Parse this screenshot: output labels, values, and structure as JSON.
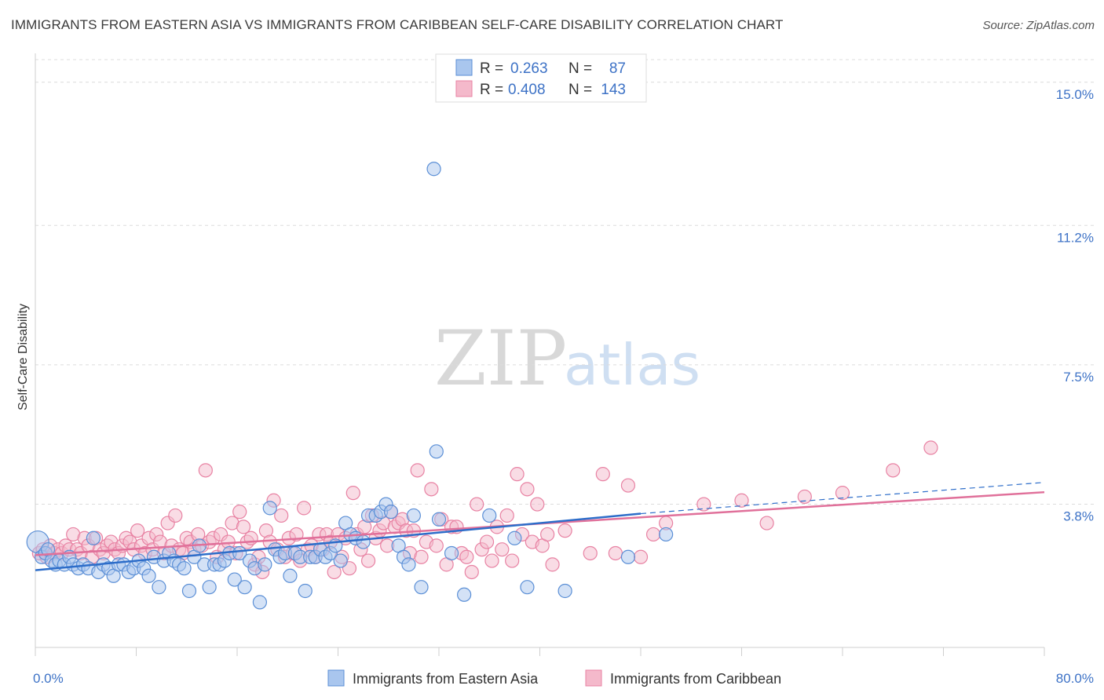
{
  "title": "IMMIGRANTS FROM EASTERN ASIA VS IMMIGRANTS FROM CARIBBEAN SELF-CARE DISABILITY CORRELATION CHART",
  "source": "Source: ZipAtlas.com",
  "watermark": {
    "zip": "ZIP",
    "atlas": "atlas"
  },
  "legend": {
    "r_label": "R =",
    "n_label": "N =",
    "rows": [
      {
        "r": "0.263",
        "n": "87"
      },
      {
        "r": "0.408",
        "n": "143"
      }
    ]
  },
  "colors": {
    "blue_fill": "#a9c6ee",
    "blue_stroke": "#5b8fd6",
    "blue_line": "#2d6dc9",
    "pink_fill": "#f4b9cb",
    "pink_stroke": "#e882a3",
    "pink_line": "#e0709a",
    "grid": "#dcdcdc",
    "tick_label": "#3d72c6"
  },
  "chart_data": {
    "type": "scatter",
    "title": "IMMIGRANTS FROM EASTERN ASIA VS IMMIGRANTS FROM CARIBBEAN SELF-CARE DISABILITY CORRELATION CHART",
    "xlabel": "",
    "ylabel": "Self-Care Disability",
    "xlim": [
      0,
      80
    ],
    "ylim": [
      0,
      15.6
    ],
    "x_tick_labels": [
      {
        "value": 0,
        "label": "0.0%"
      },
      {
        "value": 80,
        "label": "80.0%"
      }
    ],
    "y_ticks": [
      3.8,
      7.5,
      11.2,
      15.0
    ],
    "y_tick_labels": [
      "3.8%",
      "7.5%",
      "11.2%",
      "15.0%"
    ],
    "grid": true,
    "legend_position": "top-center",
    "series": [
      {
        "name": "Immigrants from Eastern Asia",
        "r": 0.263,
        "n": 87,
        "trend": {
          "x": [
            0,
            48
          ],
          "y": [
            2.05,
            3.55
          ]
        },
        "trend_dashed": {
          "x": [
            48,
            80
          ],
          "y": [
            3.55,
            4.38
          ]
        },
        "points": [
          [
            0.2,
            2.8
          ],
          [
            0.5,
            2.4
          ],
          [
            0.8,
            2.5
          ],
          [
            1.0,
            2.6
          ],
          [
            1.3,
            2.3
          ],
          [
            1.6,
            2.2
          ],
          [
            1.9,
            2.3
          ],
          [
            2.3,
            2.2
          ],
          [
            2.7,
            2.4
          ],
          [
            3.0,
            2.2
          ],
          [
            3.4,
            2.1
          ],
          [
            3.8,
            2.2
          ],
          [
            4.2,
            2.1
          ],
          [
            4.6,
            2.9
          ],
          [
            5.0,
            2.0
          ],
          [
            5.4,
            2.2
          ],
          [
            5.8,
            2.1
          ],
          [
            6.2,
            1.9
          ],
          [
            6.6,
            2.2
          ],
          [
            7.0,
            2.2
          ],
          [
            7.4,
            2.0
          ],
          [
            7.8,
            2.1
          ],
          [
            8.2,
            2.3
          ],
          [
            8.6,
            2.1
          ],
          [
            9.0,
            1.9
          ],
          [
            9.4,
            2.4
          ],
          [
            9.8,
            1.6
          ],
          [
            10.2,
            2.3
          ],
          [
            10.6,
            2.5
          ],
          [
            11.0,
            2.3
          ],
          [
            11.4,
            2.2
          ],
          [
            11.8,
            2.1
          ],
          [
            12.2,
            1.5
          ],
          [
            12.6,
            2.4
          ],
          [
            13.0,
            2.7
          ],
          [
            13.4,
            2.2
          ],
          [
            13.8,
            1.6
          ],
          [
            14.2,
            2.2
          ],
          [
            14.6,
            2.2
          ],
          [
            15.0,
            2.3
          ],
          [
            15.4,
            2.5
          ],
          [
            15.8,
            1.8
          ],
          [
            16.2,
            2.5
          ],
          [
            16.6,
            1.6
          ],
          [
            17.0,
            2.3
          ],
          [
            17.4,
            2.1
          ],
          [
            17.8,
            1.2
          ],
          [
            18.2,
            2.2
          ],
          [
            18.6,
            3.7
          ],
          [
            19.0,
            2.6
          ],
          [
            19.4,
            2.4
          ],
          [
            19.8,
            2.5
          ],
          [
            20.2,
            1.9
          ],
          [
            20.6,
            2.5
          ],
          [
            21.0,
            2.4
          ],
          [
            21.4,
            1.5
          ],
          [
            21.8,
            2.4
          ],
          [
            22.2,
            2.4
          ],
          [
            22.6,
            2.6
          ],
          [
            23.0,
            2.4
          ],
          [
            23.4,
            2.5
          ],
          [
            23.8,
            2.7
          ],
          [
            24.2,
            2.3
          ],
          [
            24.6,
            3.3
          ],
          [
            25.0,
            3.0
          ],
          [
            25.4,
            2.9
          ],
          [
            26.0,
            2.8
          ],
          [
            26.4,
            3.5
          ],
          [
            27.0,
            3.5
          ],
          [
            27.4,
            3.6
          ],
          [
            27.8,
            3.8
          ],
          [
            28.2,
            3.6
          ],
          [
            28.8,
            2.7
          ],
          [
            29.2,
            2.4
          ],
          [
            29.6,
            2.2
          ],
          [
            30.0,
            3.5
          ],
          [
            30.6,
            1.6
          ],
          [
            31.6,
            12.7
          ],
          [
            31.8,
            5.2
          ],
          [
            32.0,
            3.4
          ],
          [
            33.0,
            2.5
          ],
          [
            34.0,
            1.4
          ],
          [
            36.0,
            3.5
          ],
          [
            38.0,
            2.9
          ],
          [
            39.0,
            1.6
          ],
          [
            42.0,
            1.5
          ],
          [
            47.0,
            2.4
          ],
          [
            50.0,
            3.0
          ]
        ]
      },
      {
        "name": "Immigrants from Caribbean",
        "r": 0.408,
        "n": 143,
        "trend": {
          "x": [
            0,
            80
          ],
          "y": [
            2.45,
            4.12
          ]
        },
        "points": [
          [
            0.3,
            2.5
          ],
          [
            0.6,
            2.6
          ],
          [
            0.9,
            2.4
          ],
          [
            1.2,
            2.7
          ],
          [
            1.5,
            2.5
          ],
          [
            1.8,
            2.6
          ],
          [
            2.1,
            2.5
          ],
          [
            2.4,
            2.7
          ],
          [
            2.7,
            2.6
          ],
          [
            3.0,
            3.0
          ],
          [
            3.3,
            2.6
          ],
          [
            3.6,
            2.5
          ],
          [
            3.9,
            2.9
          ],
          [
            4.2,
            2.7
          ],
          [
            4.5,
            2.4
          ],
          [
            4.8,
            2.9
          ],
          [
            5.1,
            2.6
          ],
          [
            5.4,
            2.5
          ],
          [
            5.7,
            2.7
          ],
          [
            6.0,
            2.8
          ],
          [
            6.3,
            2.6
          ],
          [
            6.6,
            2.5
          ],
          [
            6.9,
            2.7
          ],
          [
            7.2,
            2.9
          ],
          [
            7.5,
            2.8
          ],
          [
            7.8,
            2.6
          ],
          [
            8.1,
            3.1
          ],
          [
            8.4,
            2.7
          ],
          [
            8.7,
            2.5
          ],
          [
            9.0,
            2.9
          ],
          [
            9.3,
            2.6
          ],
          [
            9.6,
            3.0
          ],
          [
            9.9,
            2.8
          ],
          [
            10.2,
            2.5
          ],
          [
            10.5,
            3.3
          ],
          [
            10.8,
            2.7
          ],
          [
            11.1,
            3.5
          ],
          [
            11.4,
            2.6
          ],
          [
            11.7,
            2.5
          ],
          [
            12.0,
            2.9
          ],
          [
            12.3,
            2.8
          ],
          [
            12.6,
            2.6
          ],
          [
            12.9,
            3.0
          ],
          [
            13.2,
            2.7
          ],
          [
            13.5,
            4.7
          ],
          [
            13.8,
            2.8
          ],
          [
            14.1,
            2.9
          ],
          [
            14.4,
            2.4
          ],
          [
            14.7,
            3.0
          ],
          [
            15.0,
            2.6
          ],
          [
            15.3,
            2.8
          ],
          [
            15.6,
            3.3
          ],
          [
            15.9,
            2.5
          ],
          [
            16.2,
            3.6
          ],
          [
            16.5,
            3.2
          ],
          [
            16.8,
            2.8
          ],
          [
            17.1,
            2.9
          ],
          [
            17.4,
            2.2
          ],
          [
            17.7,
            2.4
          ],
          [
            18.0,
            2.0
          ],
          [
            18.3,
            3.1
          ],
          [
            18.6,
            2.8
          ],
          [
            18.9,
            3.9
          ],
          [
            19.2,
            2.6
          ],
          [
            19.5,
            3.5
          ],
          [
            19.8,
            2.4
          ],
          [
            20.1,
            2.9
          ],
          [
            20.4,
            2.5
          ],
          [
            20.7,
            3.0
          ],
          [
            21.0,
            2.3
          ],
          [
            21.3,
            3.7
          ],
          [
            21.6,
            2.6
          ],
          [
            21.9,
            2.7
          ],
          [
            22.2,
            2.4
          ],
          [
            22.5,
            3.0
          ],
          [
            22.8,
            2.6
          ],
          [
            23.1,
            3.0
          ],
          [
            23.4,
            2.8
          ],
          [
            23.7,
            2.0
          ],
          [
            24.0,
            3.0
          ],
          [
            24.3,
            2.4
          ],
          [
            24.6,
            2.9
          ],
          [
            24.9,
            2.1
          ],
          [
            25.2,
            4.1
          ],
          [
            25.5,
            3.0
          ],
          [
            25.8,
            2.6
          ],
          [
            26.1,
            3.2
          ],
          [
            26.4,
            2.3
          ],
          [
            26.7,
            3.5
          ],
          [
            27.0,
            2.9
          ],
          [
            27.3,
            3.1
          ],
          [
            27.6,
            3.3
          ],
          [
            27.9,
            2.7
          ],
          [
            28.2,
            3.6
          ],
          [
            28.5,
            3.2
          ],
          [
            28.8,
            3.3
          ],
          [
            29.1,
            3.4
          ],
          [
            29.4,
            3.1
          ],
          [
            29.7,
            2.5
          ],
          [
            30.0,
            3.1
          ],
          [
            30.3,
            4.7
          ],
          [
            30.6,
            2.4
          ],
          [
            31.0,
            2.8
          ],
          [
            31.4,
            4.2
          ],
          [
            31.8,
            2.7
          ],
          [
            32.2,
            3.4
          ],
          [
            32.6,
            2.2
          ],
          [
            33.0,
            3.2
          ],
          [
            33.4,
            3.2
          ],
          [
            33.8,
            2.5
          ],
          [
            34.2,
            2.4
          ],
          [
            34.6,
            2.0
          ],
          [
            35.0,
            3.8
          ],
          [
            35.4,
            2.6
          ],
          [
            35.8,
            2.8
          ],
          [
            36.2,
            2.3
          ],
          [
            36.6,
            3.2
          ],
          [
            37.0,
            2.6
          ],
          [
            37.4,
            3.5
          ],
          [
            37.8,
            2.3
          ],
          [
            38.2,
            4.6
          ],
          [
            38.6,
            3.0
          ],
          [
            39.0,
            4.2
          ],
          [
            39.4,
            2.8
          ],
          [
            39.8,
            3.8
          ],
          [
            40.2,
            2.7
          ],
          [
            40.6,
            3.0
          ],
          [
            41.0,
            2.2
          ],
          [
            42.0,
            3.1
          ],
          [
            44.0,
            2.5
          ],
          [
            45.0,
            4.6
          ],
          [
            46.0,
            2.5
          ],
          [
            47.0,
            4.3
          ],
          [
            48.0,
            2.4
          ],
          [
            49.0,
            3.0
          ],
          [
            50.0,
            3.3
          ],
          [
            53.0,
            3.8
          ],
          [
            56.0,
            3.9
          ],
          [
            58.0,
            3.3
          ],
          [
            61.0,
            4.0
          ],
          [
            64.0,
            4.1
          ],
          [
            68.0,
            4.7
          ],
          [
            71.0,
            5.3
          ]
        ]
      }
    ]
  },
  "bottom_legend": [
    {
      "label": "Immigrants from Eastern Asia"
    },
    {
      "label": "Immigrants from Caribbean"
    }
  ]
}
